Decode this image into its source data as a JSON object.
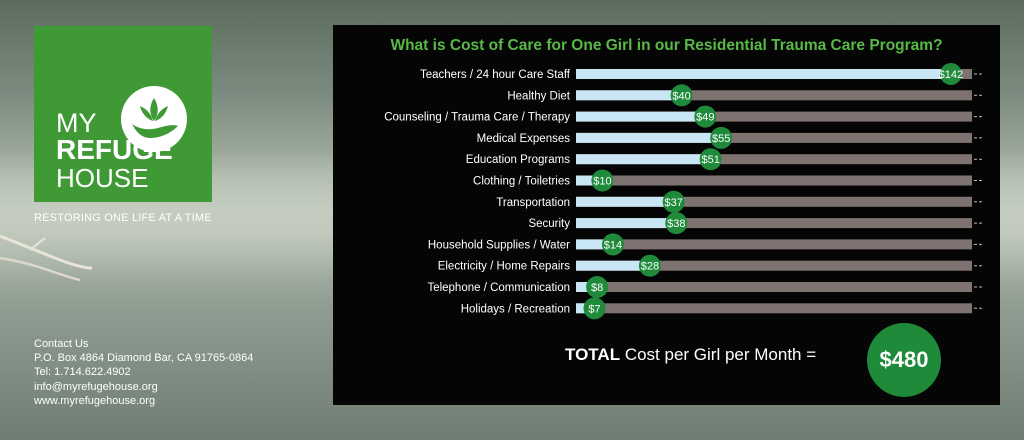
{
  "brand": {
    "logo_line1": "MY",
    "logo_line2": "REFUGE",
    "logo_line3": "HOUSE",
    "tagline": "RESTORING ONE LIFE AT A TIME",
    "color": "#3f9a35"
  },
  "contact": {
    "heading": "Contact Us",
    "address": "P.O. Box 4864 Diamond Bar, CA 91765-0864",
    "phone": "Tel: 1.714.622.4902",
    "email": "info@myrefugehouse.org",
    "website": "www.myrefugehouse.org"
  },
  "chart_data": {
    "type": "bar",
    "orientation": "horizontal",
    "title": "What is Cost of Care for One Girl in our Residential Trauma Care Program?",
    "categories": [
      "Teachers / 24 hour Care Staff",
      "Healthy Diet",
      "Counseling / Trauma Care / Therapy",
      "Medical Expenses",
      "Education Programs",
      "Clothing / Toiletries",
      "Transportation",
      "Security",
      "Household Supplies / Water",
      "Electricity / Home Repairs",
      "Telephone / Communication",
      "Holidays / Recreation"
    ],
    "values": [
      142,
      40,
      49,
      55,
      51,
      10,
      37,
      38,
      14,
      28,
      8,
      7
    ],
    "value_labels": [
      "$142",
      "$40",
      "$49",
      "$55",
      "$51",
      "$10",
      "$37",
      "$38",
      "$14",
      "$28",
      "$8",
      "$7"
    ],
    "xlim": [
      0,
      150
    ],
    "colors": {
      "filled": "#c8e6f3",
      "remaining": "#7f7372",
      "badge": "#1f8b3a",
      "title": "#58b947"
    }
  },
  "total": {
    "label_bold": "TOTAL",
    "label_rest": " Cost per Girl per Month =",
    "value": "$480"
  }
}
